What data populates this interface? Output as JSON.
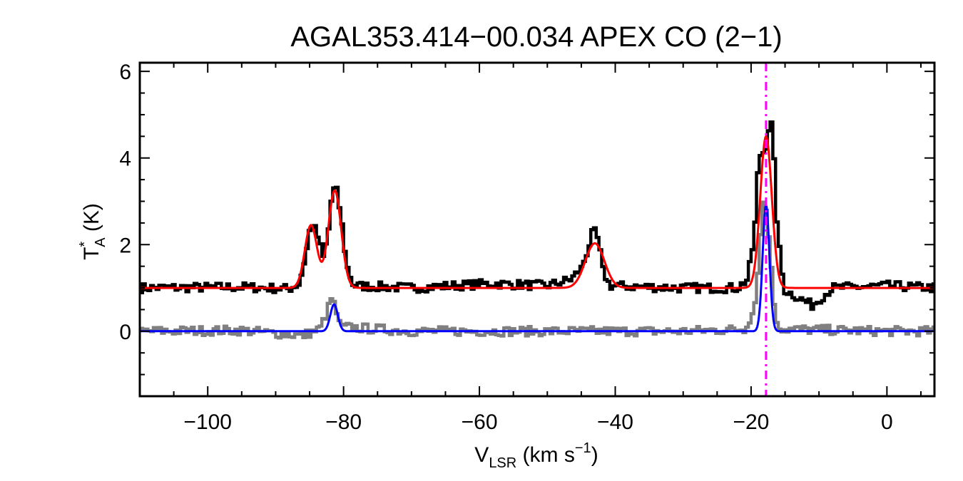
{
  "chart_data": {
    "type": "line",
    "title": "AGAL353.414−00.034  APEX CO (2−1)",
    "xlabel": {
      "main": "V",
      "sub": "LSR",
      "unit_open": " (km s",
      "unit_sup": "−1",
      "unit_close": ")"
    },
    "ylabel": {
      "main": "T",
      "sup": "*",
      "sub": "A",
      "unit": " (K)"
    },
    "xlim": [
      -110,
      7
    ],
    "ylim": [
      -1.5,
      6.2
    ],
    "x_ticks": [
      -100,
      -80,
      -60,
      -40,
      -20,
      0
    ],
    "x_tick_labels": [
      "−100",
      "−80",
      "−60",
      "−40",
      "−20",
      "0"
    ],
    "y_ticks": [
      0,
      2,
      4,
      6
    ],
    "y_tick_labels": [
      "0",
      "2",
      "4",
      "6"
    ],
    "grid": false,
    "vline": {
      "x": -17.8,
      "color": "#ff00ff",
      "style": "dash-dot"
    },
    "series": [
      {
        "kind": "histogram",
        "color": "#000000",
        "points": [
          [
            -110,
            1.0
          ],
          [
            -95,
            1.02
          ],
          [
            -88,
            0.98
          ],
          [
            -86.5,
            1.1
          ],
          [
            -85.5,
            1.8
          ],
          [
            -84.8,
            2.5
          ],
          [
            -84.0,
            2.3
          ],
          [
            -83.0,
            1.7
          ],
          [
            -82.3,
            2.2
          ],
          [
            -81.8,
            3.0
          ],
          [
            -81.2,
            3.4
          ],
          [
            -80.4,
            2.7
          ],
          [
            -79.5,
            1.5
          ],
          [
            -78.5,
            1.05
          ],
          [
            -70,
            1.0
          ],
          [
            -58,
            1.1
          ],
          [
            -50,
            1.05
          ],
          [
            -46.5,
            1.2
          ],
          [
            -45,
            1.45
          ],
          [
            -44,
            1.9
          ],
          [
            -43.2,
            2.35
          ],
          [
            -42.5,
            2.1
          ],
          [
            -41.8,
            1.4
          ],
          [
            -40.8,
            1.05
          ],
          [
            -30,
            1.0
          ],
          [
            -22,
            1.0
          ],
          [
            -20.5,
            1.2
          ],
          [
            -19.5,
            2.2
          ],
          [
            -19.0,
            3.6
          ],
          [
            -18.5,
            4.2
          ],
          [
            -18.0,
            4.1
          ],
          [
            -17.5,
            4.6
          ],
          [
            -17.1,
            4.95
          ],
          [
            -16.7,
            4.2
          ],
          [
            -16.2,
            2.6
          ],
          [
            -15.6,
            1.5
          ],
          [
            -15.0,
            0.95
          ],
          [
            -11.0,
            0.6
          ],
          [
            -8,
            1.0
          ],
          [
            0,
            1.05
          ],
          [
            7,
            1.0
          ]
        ]
      },
      {
        "kind": "histogram",
        "color": "#808080",
        "points": [
          [
            -110,
            0.0
          ],
          [
            -95,
            0.02
          ],
          [
            -86,
            -0.1
          ],
          [
            -83.5,
            0.05
          ],
          [
            -82.5,
            0.4
          ],
          [
            -81.8,
            0.75
          ],
          [
            -81.2,
            0.55
          ],
          [
            -80.5,
            0.1
          ],
          [
            -70,
            0.0
          ],
          [
            -50,
            0.0
          ],
          [
            -30,
            0.0
          ],
          [
            -21,
            0.05
          ],
          [
            -19.5,
            0.5
          ],
          [
            -18.8,
            1.8
          ],
          [
            -18.2,
            3.0
          ],
          [
            -17.6,
            2.7
          ],
          [
            -17.0,
            1.4
          ],
          [
            -16.4,
            0.3
          ],
          [
            -15.5,
            0.05
          ],
          [
            0,
            0.0
          ],
          [
            7,
            0.0
          ]
        ]
      },
      {
        "kind": "gaussian-fit",
        "color": "#ff0000",
        "baseline": 1.0,
        "components": [
          {
            "center": -84.8,
            "amplitude": 1.45,
            "sigma": 0.9
          },
          {
            "center": -81.3,
            "amplitude": 2.25,
            "sigma": 0.95
          },
          {
            "center": -43.0,
            "amplitude": 1.03,
            "sigma": 1.4
          },
          {
            "center": -17.8,
            "amplitude": 3.5,
            "sigma": 0.85
          }
        ]
      },
      {
        "kind": "gaussian-fit",
        "color": "#0000ff",
        "baseline": 0.0,
        "components": [
          {
            "center": -81.4,
            "amplitude": 0.62,
            "sigma": 0.55
          },
          {
            "center": -17.8,
            "amplitude": 2.92,
            "sigma": 0.5
          }
        ]
      }
    ]
  }
}
